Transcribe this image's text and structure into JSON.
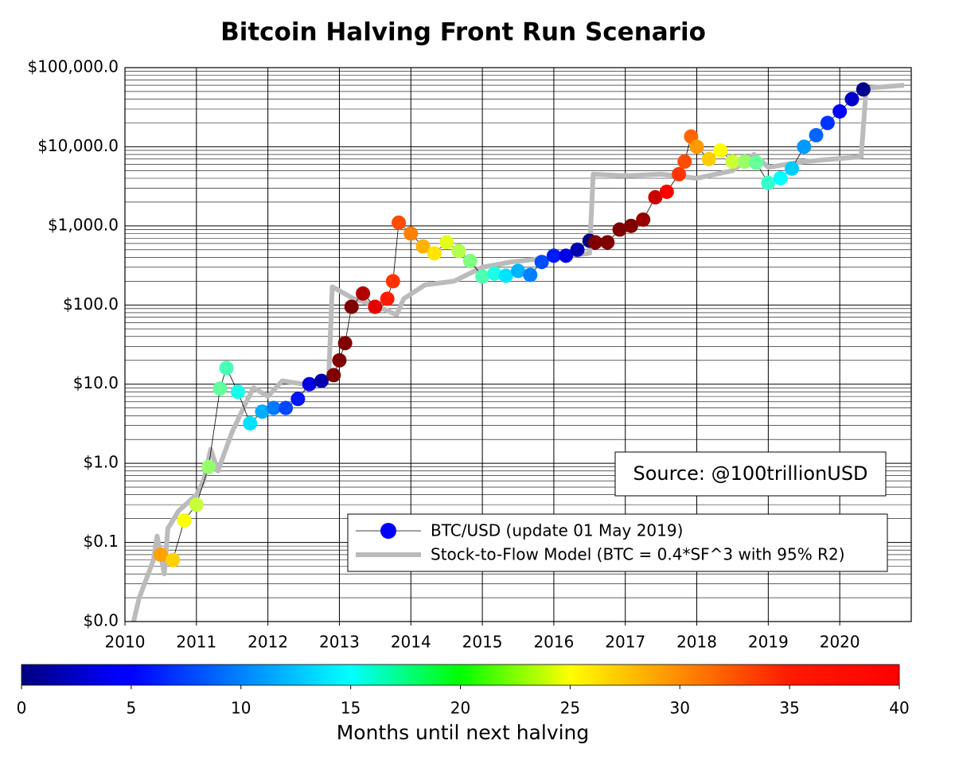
{
  "chart_data": {
    "type": "scatter",
    "title": "Bitcoin Halving Front Run Scenario",
    "xlim": [
      2010,
      2021
    ],
    "xticks": [
      2010,
      2011,
      2012,
      2013,
      2014,
      2015,
      2016,
      2017,
      2018,
      2019,
      2020
    ],
    "ylim": [
      0.01,
      100000
    ],
    "log_y": true,
    "grid": true,
    "minor_grid": true,
    "yticks": [
      {
        "value": 0.01,
        "label": "$0.0"
      },
      {
        "value": 0.1,
        "label": "$0.1"
      },
      {
        "value": 1,
        "label": "$1.0"
      },
      {
        "value": 10,
        "label": "$10.0"
      },
      {
        "value": 100,
        "label": "$100.0"
      },
      {
        "value": 1000,
        "label": "$1,000.0"
      },
      {
        "value": 10000,
        "label": "$10,000.0"
      },
      {
        "value": 100000,
        "label": "$100,000.0"
      }
    ],
    "legend": "lower right",
    "annotation": "Source: @100trillionUSD",
    "series": [
      {
        "name": "BTC/USD (update 01 May 2019)",
        "color": "#0000ff",
        "colormap": "jet",
        "x": [
          2010.5,
          2010.67,
          2010.83,
          2011.0,
          2011.17,
          2011.33,
          2011.42,
          2011.58,
          2011.75,
          2011.92,
          2012.08,
          2012.25,
          2012.42,
          2012.58,
          2012.75,
          2012.92,
          2013.0,
          2013.08,
          2013.17,
          2013.33,
          2013.5,
          2013.67,
          2013.75,
          2013.83,
          2014.0,
          2014.17,
          2014.33,
          2014.5,
          2014.67,
          2014.83,
          2015.0,
          2015.17,
          2015.33,
          2015.5,
          2015.67,
          2015.83,
          2016.0,
          2016.17,
          2016.33,
          2016.5,
          2016.58,
          2016.75,
          2016.92,
          2017.08,
          2017.25,
          2017.42,
          2017.58,
          2017.75,
          2017.83,
          2017.92,
          2018.0,
          2018.17,
          2018.33,
          2018.5,
          2018.67,
          2018.83,
          2019.0,
          2019.17,
          2019.33,
          2019.5,
          2019.67,
          2019.83,
          2020.0,
          2020.17,
          2020.33
        ],
        "values": [
          0.07,
          0.06,
          0.19,
          0.3,
          0.9,
          8.8,
          16,
          8,
          3.2,
          4.5,
          5,
          5,
          6.5,
          10,
          11,
          13,
          20,
          33,
          95,
          140,
          95,
          120,
          200,
          1100,
          800,
          550,
          450,
          620,
          480,
          360,
          230,
          250,
          235,
          270,
          240,
          350,
          420,
          420,
          500,
          650,
          620,
          620,
          900,
          1000,
          1200,
          2300,
          2700,
          4500,
          6500,
          13500,
          10000,
          7000,
          9000,
          6500,
          6500,
          6300,
          3500,
          4000,
          5300,
          10000,
          14000,
          20000,
          28000,
          40000,
          53000
        ],
        "months": [
          28.7,
          26.8,
          24.8,
          22.8,
          20.8,
          18.8,
          17.8,
          15.8,
          13.8,
          11.8,
          9.8,
          7.8,
          5.8,
          3.8,
          1.8,
          40,
          40,
          40,
          40,
          38,
          36,
          34,
          33,
          32,
          30,
          28,
          26,
          24,
          22,
          20,
          18,
          16,
          14,
          12,
          10,
          8,
          6,
          4,
          2,
          0,
          40,
          40,
          40,
          40,
          39,
          37,
          35,
          33,
          32,
          31,
          29,
          27,
          25,
          23,
          21,
          19,
          17,
          15,
          13,
          11,
          9,
          7,
          5,
          3,
          0.5
        ]
      },
      {
        "name": "Stock-to-Flow Model (BTC = 0.4*SF^3 with 95% R2)",
        "color": "#bbbbbb",
        "x": [
          2010.12,
          2010.2,
          2010.4,
          2010.45,
          2010.55,
          2010.6,
          2010.75,
          2011.0,
          2011.1,
          2011.2,
          2011.3,
          2011.5,
          2011.7,
          2011.8,
          2012.0,
          2012.2,
          2012.5,
          2012.85,
          2012.9,
          2013.2,
          2013.5,
          2013.8,
          2013.9,
          2014.2,
          2014.6,
          2015.0,
          2015.4,
          2016.0,
          2016.5,
          2016.55,
          2017.0,
          2017.5,
          2018.0,
          2018.5,
          2018.8,
          2019.0,
          2019.5,
          2020.3,
          2020.37,
          2020.9
        ],
        "values": [
          0.01,
          0.02,
          0.06,
          0.12,
          0.04,
          0.15,
          0.25,
          0.4,
          0.6,
          1.5,
          0.8,
          2.5,
          6,
          9,
          7,
          11,
          10,
          12,
          170,
          120,
          100,
          75,
          120,
          180,
          200,
          300,
          350,
          400,
          450,
          4500,
          4300,
          4500,
          4000,
          5000,
          8000,
          5500,
          6500,
          7500,
          55000,
          60000
        ]
      }
    ],
    "colorbar": {
      "label": "Months until next halving",
      "lim": [
        0,
        40
      ],
      "ticks": [
        0,
        5,
        10,
        15,
        20,
        25,
        30,
        35,
        40
      ]
    }
  }
}
